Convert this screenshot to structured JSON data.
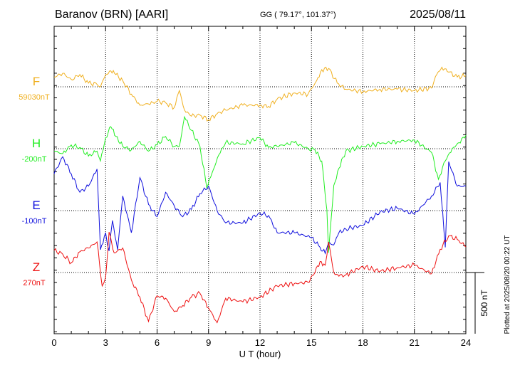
{
  "header": {
    "station": "Baranov (BRN)  [AARI]",
    "coords": "GG ( 79.17°, 101.37°)",
    "date": "2025/08/11"
  },
  "side_note": "Plotted at 2025/08/20 00:22 UT",
  "chart_data": {
    "type": "line",
    "xlabel": "U T (hour)",
    "xlim": [
      0,
      24
    ],
    "xticks": [
      "0",
      "3",
      "6",
      "9",
      "12",
      "15",
      "18",
      "21",
      "24"
    ],
    "scale_bar_label": "500 nT",
    "scale_bar_nT": 500,
    "series": [
      {
        "name": "F",
        "baseline": "59030nT",
        "color": "#f0b020",
        "x": [
          0,
          0.5,
          1,
          1.5,
          2,
          2.5,
          2.7,
          3,
          3.3,
          3.6,
          4,
          4.5,
          5,
          5.5,
          6,
          6.5,
          7,
          7.3,
          7.6,
          8,
          8.5,
          9,
          9.5,
          10,
          11,
          12,
          12.5,
          13,
          14,
          14.8,
          15.3,
          15.6,
          16,
          16.5,
          17,
          18,
          19,
          20,
          21,
          22,
          22.3,
          22.6,
          23,
          23.5,
          24
        ],
        "y": [
          80,
          110,
          60,
          100,
          30,
          20,
          0,
          100,
          130,
          100,
          50,
          -60,
          -150,
          -140,
          -120,
          -130,
          -170,
          -30,
          -190,
          -240,
          -230,
          -270,
          -220,
          -190,
          -150,
          -150,
          -160,
          -100,
          -50,
          -60,
          50,
          140,
          150,
          30,
          -20,
          -40,
          -20,
          -20,
          -30,
          -10,
          100,
          160,
          120,
          80,
          90
        ]
      },
      {
        "name": "H",
        "baseline": "-200nT",
        "color": "#22ee22",
        "x": [
          0,
          0.5,
          1,
          1.5,
          2,
          2.5,
          2.7,
          3,
          3.3,
          3.6,
          4,
          4.5,
          5,
          5.5,
          6,
          6.5,
          7,
          7.3,
          7.6,
          8,
          8.5,
          8.9,
          9.2,
          9.6,
          10,
          11,
          12,
          12.5,
          13,
          14,
          14.8,
          15.2,
          15.6,
          15.9,
          16,
          16.3,
          16.6,
          17,
          18,
          19,
          20,
          21,
          22,
          22.4,
          22.8,
          23.2,
          23.6,
          24
        ],
        "y": [
          -20,
          -40,
          30,
          10,
          -60,
          -20,
          -100,
          90,
          180,
          100,
          20,
          -10,
          60,
          -20,
          30,
          100,
          20,
          20,
          260,
          150,
          20,
          -320,
          -200,
          -50,
          50,
          40,
          90,
          10,
          20,
          50,
          0,
          -10,
          -100,
          -500,
          -850,
          -300,
          -160,
          -20,
          20,
          40,
          60,
          70,
          -30,
          -250,
          -100,
          0,
          50,
          110
        ]
      },
      {
        "name": "E",
        "baseline": "-100nT",
        "color": "#1010dd",
        "x": [
          0,
          0.5,
          1,
          1.5,
          2,
          2.5,
          2.7,
          3,
          3.2,
          3.4,
          3.7,
          4,
          4.5,
          5,
          5.5,
          6,
          6.5,
          7,
          7.5,
          8,
          8.5,
          9,
          9.5,
          10,
          11,
          12,
          12.5,
          13,
          14,
          15,
          15.5,
          15.8,
          16,
          16.3,
          16.6,
          17,
          18,
          19,
          20,
          21,
          22,
          22.5,
          22.8,
          23,
          23.5,
          24
        ],
        "y": [
          300,
          440,
          300,
          150,
          200,
          340,
          -320,
          -180,
          -330,
          -80,
          -320,
          120,
          -180,
          270,
          50,
          -50,
          150,
          40,
          -50,
          10,
          140,
          200,
          0,
          -100,
          -100,
          -20,
          -40,
          -180,
          -180,
          -220,
          -300,
          -350,
          -260,
          -280,
          -180,
          -150,
          -120,
          -10,
          20,
          -30,
          120,
          230,
          -300,
          400,
          200,
          200
        ]
      },
      {
        "name": "Z",
        "baseline": "270nT",
        "color": "#ee1111",
        "x": [
          0,
          0.5,
          1,
          1.5,
          2,
          2.5,
          2.8,
          3,
          3.2,
          3.5,
          4,
          4.5,
          5,
          5.5,
          6,
          6.5,
          7,
          7.5,
          8,
          8.5,
          9,
          9.5,
          10,
          11,
          12,
          13,
          14,
          14.8,
          15.2,
          15.5,
          15.8,
          16,
          16.3,
          16.6,
          17,
          18,
          19,
          20,
          21,
          22,
          22.5,
          23,
          23.5,
          24
        ],
        "y": [
          180,
          150,
          80,
          170,
          200,
          250,
          -110,
          -40,
          330,
          160,
          200,
          -60,
          -200,
          -400,
          -190,
          -210,
          -320,
          -270,
          -200,
          -170,
          -290,
          -410,
          -210,
          -240,
          -200,
          -110,
          -90,
          -80,
          0,
          90,
          60,
          250,
          0,
          -30,
          -20,
          50,
          10,
          40,
          60,
          -10,
          190,
          300,
          270,
          210
        ]
      }
    ]
  }
}
